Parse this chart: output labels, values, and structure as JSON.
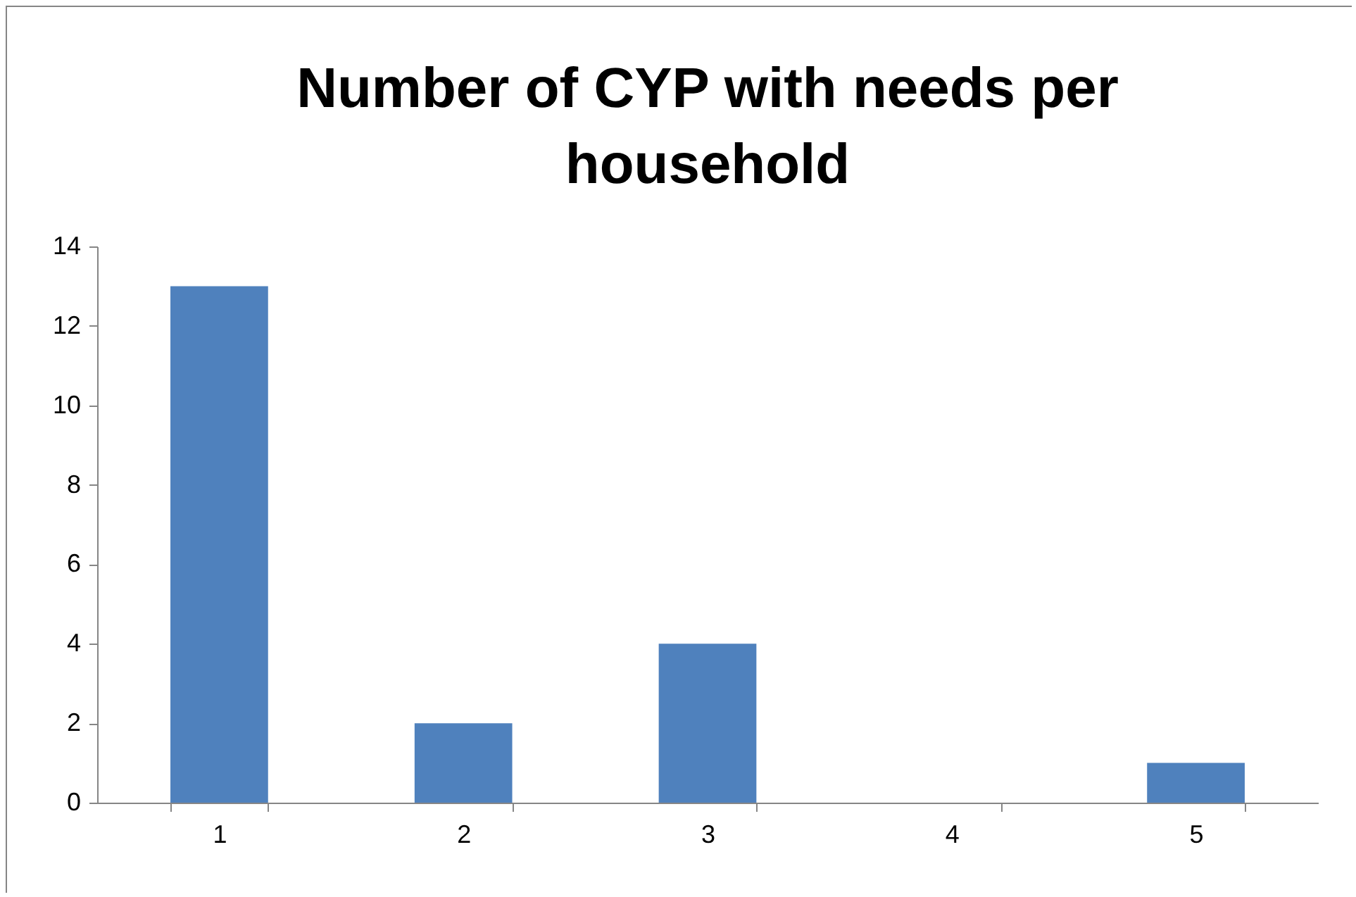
{
  "chart_data": {
    "type": "bar",
    "title": "Number of CYP with needs per household",
    "categories": [
      "1",
      "2",
      "3",
      "4",
      "5"
    ],
    "values": [
      13,
      2,
      4,
      0,
      1
    ],
    "color": "#4f81bd",
    "ylim": [
      0,
      14
    ],
    "yticks": [
      0,
      2,
      4,
      6,
      8,
      10,
      12,
      14
    ]
  }
}
